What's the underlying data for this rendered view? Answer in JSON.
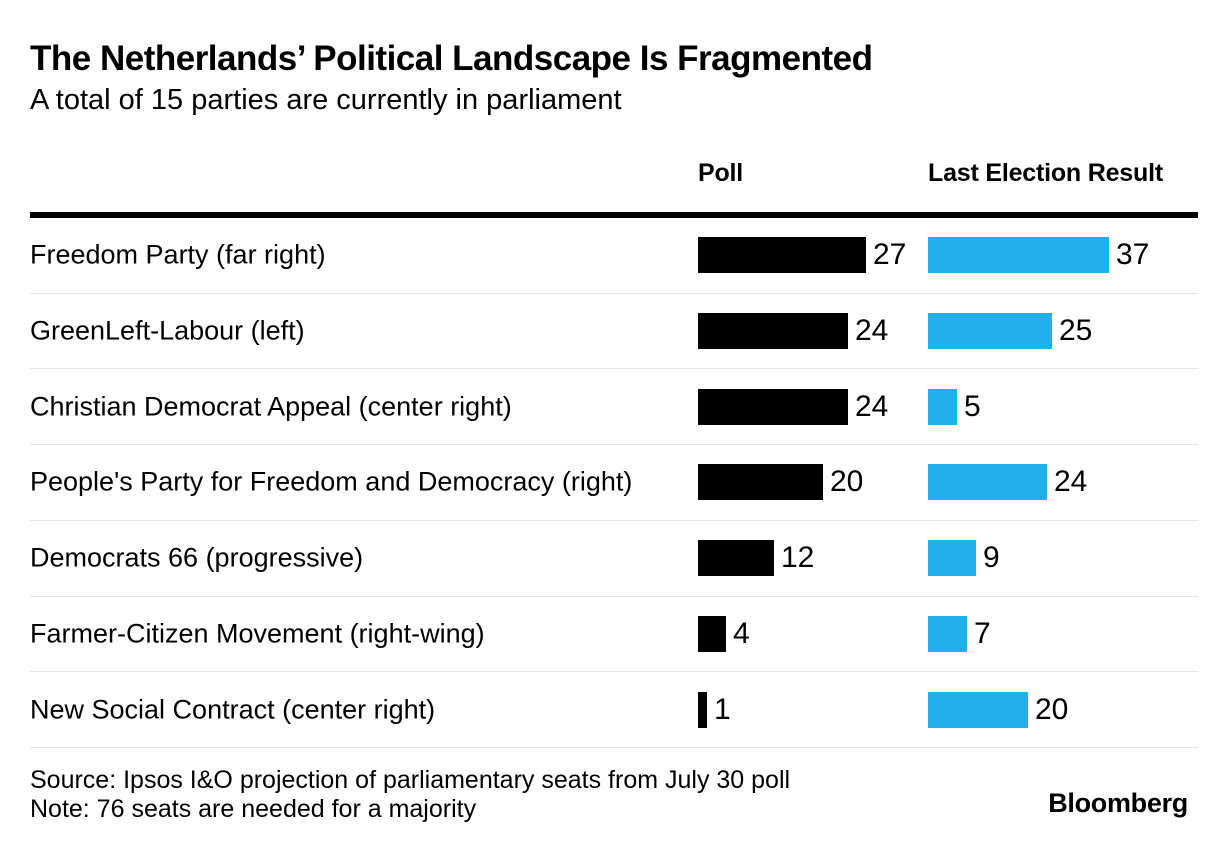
{
  "chart_data": {
    "type": "bar",
    "orientation": "horizontal",
    "title": "The Netherlands’ Political Landscape Is Fragmented",
    "subtitle": "A total of 15 parties are currently in parliament",
    "categories": [
      "Freedom Party (far right)",
      "GreenLeft-Labour (left)",
      "Christian Democrat Appeal (center right)",
      "People's Party for Freedom and Democracy (right)",
      "Democrats 66 (progressive)",
      "Farmer-Citizen Movement (right-wing)",
      "New Social Contract (center right)"
    ],
    "series": [
      {
        "name": "Poll",
        "color": "#000000",
        "values": [
          27,
          24,
          24,
          20,
          12,
          4,
          1
        ]
      },
      {
        "name": "Last Election Result",
        "color": "#23AFEC",
        "values": [
          37,
          25,
          5,
          24,
          9,
          7,
          20
        ]
      }
    ],
    "value_labels": true,
    "legend_position": "column-headers",
    "grid": false,
    "axes_hidden": true,
    "series_scales_independent": true,
    "source": "Source: Ipsos I&O projection of parliamentary seats from July 30 poll",
    "note": "Note: 76 seats are needed for a majority"
  },
  "footer": {
    "brand": "Bloomberg"
  },
  "colors": {
    "background": "#ffffff",
    "poll_bar": "#000000",
    "election_bar": "#23AFEC",
    "header_rule": "#000000",
    "row_separator": "#e7e7e7"
  }
}
